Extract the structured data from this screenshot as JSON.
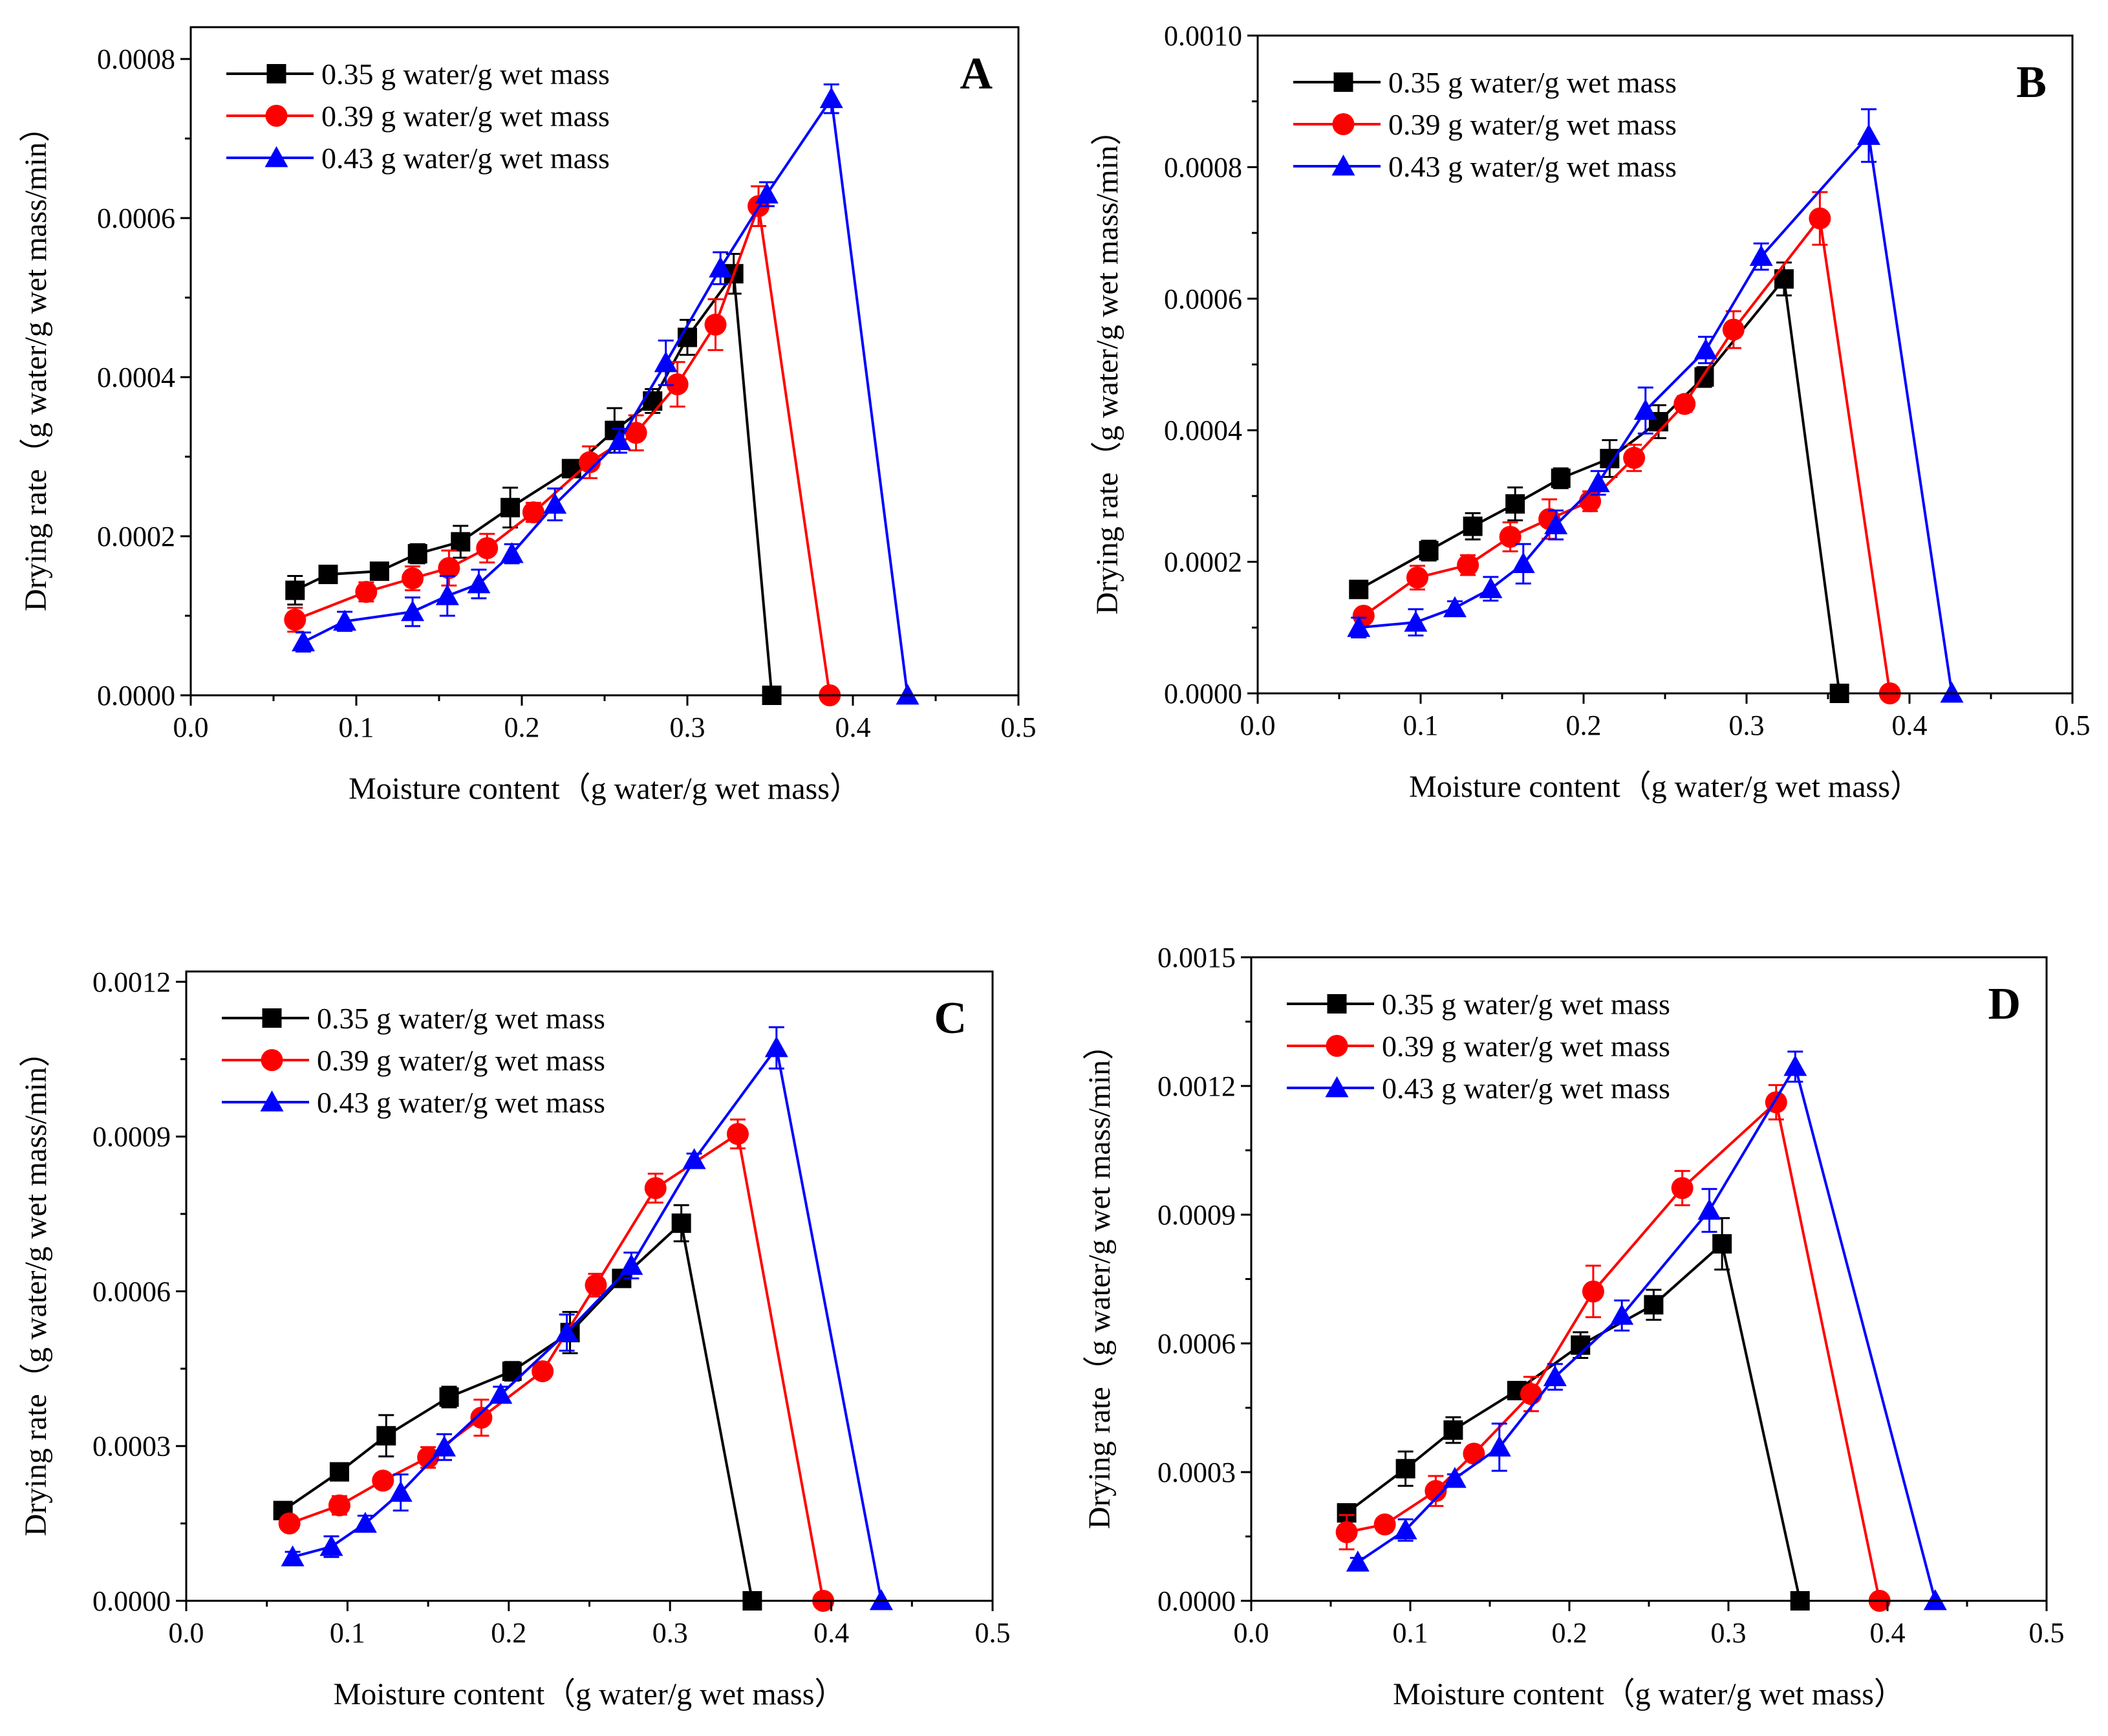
{
  "chart_data": [
    {
      "type": "line",
      "panel_label": "A",
      "xlabel": "Moisture content（g water/g wet mass）",
      "ylabel": "Drying rate（g water/g wet mass/min）",
      "xlim": [
        0.0,
        0.5
      ],
      "ylim": [
        0.0,
        0.00084
      ],
      "x_ticks": [
        0.0,
        0.1,
        0.2,
        0.3,
        0.4,
        0.5
      ],
      "x_tick_labels": [
        "0.0",
        "0.1",
        "0.2",
        "0.3",
        "0.4",
        "0.5"
      ],
      "y_ticks": [
        0.0,
        0.0002,
        0.0004,
        0.0006,
        0.0008
      ],
      "y_tick_labels": [
        "0.0000",
        "0.0002",
        "0.0004",
        "0.0006",
        "0.0008"
      ],
      "legend_position": "top-left",
      "series": [
        {
          "name": "0.35 g water/g wet mass",
          "color": "#000000",
          "marker": "square",
          "x": [
            0.063,
            0.083,
            0.114,
            0.137,
            0.163,
            0.193,
            0.23,
            0.256,
            0.279,
            0.3,
            0.328,
            0.351
          ],
          "y": [
            0.000132,
            0.000152,
            0.000156,
            0.000178,
            0.000193,
            0.000236,
            0.000285,
            0.000333,
            0.00037,
            0.00045,
            0.00053,
            0.0
          ],
          "err": [
            1.8e-05,
            1e-05,
            8e-06,
            1.2e-05,
            2e-05,
            2.5e-05,
            1e-05,
            2.8e-05,
            1.5e-05,
            2.2e-05,
            2.5e-05,
            0.0
          ]
        },
        {
          "name": "0.39 g water/g wet mass",
          "color": "#ff0000",
          "marker": "circle",
          "x": [
            0.063,
            0.106,
            0.134,
            0.156,
            0.179,
            0.207,
            0.241,
            0.269,
            0.294,
            0.317,
            0.343,
            0.386
          ],
          "y": [
            9.5e-05,
            0.00013,
            0.000147,
            0.00016,
            0.000185,
            0.00023,
            0.000293,
            0.00033,
            0.000391,
            0.000466,
            0.000615,
            0.0
          ],
          "err": [
            1.5e-05,
            1.2e-05,
            1.5e-05,
            2.2e-05,
            1.8e-05,
            1.2e-05,
            2e-05,
            2.2e-05,
            2.8e-05,
            3.2e-05,
            2.5e-05,
            0.0
          ]
        },
        {
          "name": "0.43 g water/g wet mass",
          "color": "#0000ff",
          "marker": "triangle",
          "x": [
            0.068,
            0.093,
            0.134,
            0.155,
            0.174,
            0.194,
            0.22,
            0.259,
            0.287,
            0.32,
            0.348,
            0.387,
            0.433
          ],
          "y": [
            6.7e-05,
            9.3e-05,
            0.000105,
            0.000125,
            0.00014,
            0.000178,
            0.00024,
            0.00032,
            0.000418,
            0.000537,
            0.00063,
            0.00075,
            0.0
          ],
          "err": [
            1.2e-05,
            1.2e-05,
            1.8e-05,
            2.5e-05,
            1.8e-05,
            1.2e-05,
            2e-05,
            1.5e-05,
            2.8e-05,
            2e-05,
            1.5e-05,
            1.8e-05,
            0.0
          ]
        }
      ]
    },
    {
      "type": "line",
      "panel_label": "B",
      "xlabel": "Moisture content（g water/g wet mass）",
      "ylabel": "Drying rate（g water/g wet mass/min）",
      "xlim": [
        0.0,
        0.5
      ],
      "ylim": [
        0.0,
        0.001
      ],
      "x_ticks": [
        0.0,
        0.1,
        0.2,
        0.3,
        0.4,
        0.5
      ],
      "x_tick_labels": [
        "0.0",
        "0.1",
        "0.2",
        "0.3",
        "0.4",
        "0.5"
      ],
      "y_ticks": [
        0.0,
        0.0002,
        0.0004,
        0.0006,
        0.0008,
        0.001
      ],
      "y_tick_labels": [
        "0.0000",
        "0.0002",
        "0.0004",
        "0.0006",
        "0.0008",
        "0.0010"
      ],
      "legend_position": "top-left",
      "series": [
        {
          "name": "0.35 g water/g wet mass",
          "color": "#000000",
          "marker": "square",
          "x": [
            0.062,
            0.105,
            0.132,
            0.158,
            0.186,
            0.216,
            0.246,
            0.274,
            0.323,
            0.357
          ],
          "y": [
            0.000158,
            0.000217,
            0.000254,
            0.000288,
            0.000327,
            0.000357,
            0.000413,
            0.000481,
            0.00063,
            0.0
          ],
          "err": [
            1e-05,
            1.5e-05,
            2e-05,
            2.5e-05,
            1.5e-05,
            2.8e-05,
            2.5e-05,
            1.5e-05,
            2.5e-05,
            0.0
          ]
        },
        {
          "name": "0.39 g water/g wet mass",
          "color": "#ff0000",
          "marker": "circle",
          "x": [
            0.065,
            0.098,
            0.129,
            0.155,
            0.179,
            0.204,
            0.231,
            0.262,
            0.292,
            0.345,
            0.388
          ],
          "y": [
            0.000118,
            0.000176,
            0.000195,
            0.000238,
            0.000265,
            0.000292,
            0.000358,
            0.00044,
            0.000553,
            0.000722,
            0.0
          ],
          "err": [
            1e-05,
            1.8e-05,
            1.5e-05,
            2.2e-05,
            3e-05,
            1.5e-05,
            2e-05,
            1.2e-05,
            2.8e-05,
            4e-05,
            0.0
          ]
        },
        {
          "name": "0.43 g water/g wet mass",
          "color": "#0000ff",
          "marker": "triangle",
          "x": [
            0.062,
            0.097,
            0.121,
            0.143,
            0.163,
            0.183,
            0.209,
            0.238,
            0.275,
            0.309,
            0.375,
            0.426
          ],
          "y": [
            0.0001,
            0.000108,
            0.00013,
            0.000159,
            0.000197,
            0.000256,
            0.00032,
            0.00043,
            0.000522,
            0.000664,
            0.000848,
            0.0
          ],
          "err": [
            1.5e-05,
            2e-05,
            1e-05,
            1.8e-05,
            3e-05,
            2.2e-05,
            1.8e-05,
            3.5e-05,
            2e-05,
            2e-05,
            4e-05,
            0.0
          ]
        }
      ]
    },
    {
      "type": "line",
      "panel_label": "C",
      "xlabel": "Moisture content（g water/g wet mass）",
      "ylabel": "Drying rate（g water/g wet mass/min）",
      "xlim": [
        0.0,
        0.5
      ],
      "ylim": [
        0.0,
        0.00122
      ],
      "x_ticks": [
        0.0,
        0.1,
        0.2,
        0.3,
        0.4,
        0.5
      ],
      "x_tick_labels": [
        "0.0",
        "0.1",
        "0.2",
        "0.3",
        "0.4",
        "0.5"
      ],
      "y_ticks": [
        0.0,
        0.0003,
        0.0006,
        0.0009,
        0.0012
      ],
      "y_tick_labels": [
        "0.0000",
        "0.0003",
        "0.0006",
        "0.0009",
        "0.0012"
      ],
      "legend_position": "top-left",
      "series": [
        {
          "name": "0.35 g water/g wet mass",
          "color": "#000000",
          "marker": "square",
          "x": [
            0.06,
            0.095,
            0.124,
            0.163,
            0.202,
            0.238,
            0.27,
            0.307,
            0.351
          ],
          "y": [
            0.000175,
            0.00025,
            0.00032,
            0.000395,
            0.000445,
            0.00052,
            0.000625,
            0.000732,
            0.0
          ],
          "err": [
            1e-05,
            1e-05,
            4e-05,
            2e-05,
            1.8e-05,
            4e-05,
            1.5e-05,
            3.5e-05,
            0.0
          ]
        },
        {
          "name": "0.39 g water/g wet mass",
          "color": "#ff0000",
          "marker": "circle",
          "x": [
            0.064,
            0.095,
            0.122,
            0.15,
            0.183,
            0.221,
            0.254,
            0.291,
            0.342,
            0.395
          ],
          "y": [
            0.00015,
            0.000185,
            0.000233,
            0.000278,
            0.000355,
            0.000445,
            0.000612,
            0.0008,
            0.000905,
            0.0
          ],
          "err": [
            1e-05,
            1.8e-05,
            1e-05,
            2e-05,
            3.5e-05,
            1.2e-05,
            2.2e-05,
            2.8e-05,
            2.8e-05,
            0.0
          ]
        },
        {
          "name": "0.43 g water/g wet mass",
          "color": "#0000ff",
          "marker": "triangle",
          "x": [
            0.066,
            0.09,
            0.111,
            0.133,
            0.16,
            0.195,
            0.236,
            0.276,
            0.315,
            0.366,
            0.431
          ],
          "y": [
            8.5e-05,
            0.000105,
            0.00015,
            0.00021,
            0.000298,
            0.0004,
            0.00052,
            0.00065,
            0.000855,
            0.001072,
            0.0
          ],
          "err": [
            1e-05,
            2e-05,
            1.5e-05,
            3.5e-05,
            2.5e-05,
            1.5e-05,
            3.5e-05,
            2.5e-05,
            1.2e-05,
            4e-05,
            0.0
          ]
        }
      ]
    },
    {
      "type": "line",
      "panel_label": "D",
      "xlabel": "Moisture content（g water/g wet mass）",
      "ylabel": "Drying rate（g water/g wet mass/min）",
      "xlim": [
        0.0,
        0.5
      ],
      "ylim": [
        0.0,
        0.0015
      ],
      "x_ticks": [
        0.0,
        0.1,
        0.2,
        0.3,
        0.4,
        0.5
      ],
      "x_tick_labels": [
        "0.0",
        "0.1",
        "0.2",
        "0.3",
        "0.4",
        "0.5"
      ],
      "y_ticks": [
        0.0,
        0.0003,
        0.0006,
        0.0009,
        0.0012,
        0.0015
      ],
      "y_tick_labels": [
        "0.0000",
        "0.0003",
        "0.0006",
        "0.0009",
        "0.0012",
        "0.0015"
      ],
      "legend_position": "top-left",
      "series": [
        {
          "name": "0.35 g water/g wet mass",
          "color": "#000000",
          "marker": "square",
          "x": [
            0.06,
            0.097,
            0.127,
            0.167,
            0.207,
            0.253,
            0.296,
            0.345
          ],
          "y": [
            0.000205,
            0.000308,
            0.000398,
            0.00049,
            0.000596,
            0.00069,
            0.000832,
            0.0
          ],
          "err": [
            1e-05,
            4e-05,
            3e-05,
            1e-05,
            3e-05,
            3.5e-05,
            6e-05,
            0.0
          ]
        },
        {
          "name": "0.39 g water/g wet mass",
          "color": "#ff0000",
          "marker": "circle",
          "x": [
            0.06,
            0.084,
            0.116,
            0.14,
            0.176,
            0.215,
            0.271,
            0.33,
            0.395
          ],
          "y": [
            0.00016,
            0.000178,
            0.000256,
            0.000343,
            0.000482,
            0.000721,
            0.000962,
            0.001162,
            0.0
          ],
          "err": [
            4e-05,
            1e-05,
            3.5e-05,
            1e-05,
            4e-05,
            6e-05,
            4e-05,
            4e-05,
            0.0
          ]
        },
        {
          "name": "0.43 g water/g wet mass",
          "color": "#0000ff",
          "marker": "triangle",
          "x": [
            0.067,
            0.097,
            0.128,
            0.156,
            0.191,
            0.233,
            0.288,
            0.342,
            0.43
          ],
          "y": [
            9e-05,
            0.000165,
            0.000285,
            0.000358,
            0.000522,
            0.000665,
            0.00091,
            0.001245,
            0.0
          ],
          "err": [
            1e-05,
            2.5e-05,
            1e-05,
            5.5e-05,
            3e-05,
            3.5e-05,
            5e-05,
            3.5e-05,
            0.0
          ]
        }
      ]
    }
  ]
}
